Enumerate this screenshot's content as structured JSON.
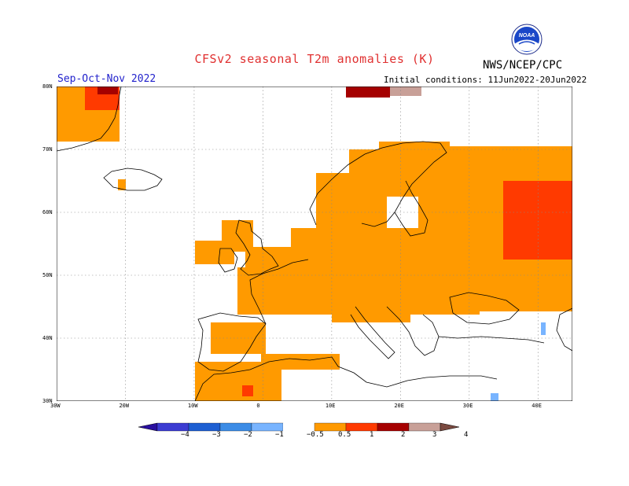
{
  "title": "CFSv2 seasonal T2m anomalies (K)",
  "agency": "NWS/NCEP/CPC",
  "logo_text": "NOAA",
  "season": "Sep-Oct-Nov 2022",
  "initial_conditions": "Initial conditions: 11Jun2022-20Jun2022",
  "map": {
    "lon_range": [
      -30,
      45
    ],
    "lat_range": [
      30,
      80
    ],
    "lat_labels": [
      {
        "lat": 80,
        "text": "80N"
      },
      {
        "lat": 70,
        "text": "70N"
      },
      {
        "lat": 60,
        "text": "60N"
      },
      {
        "lat": 50,
        "text": "50N"
      },
      {
        "lat": 40,
        "text": "40N"
      },
      {
        "lat": 30,
        "text": "30N"
      }
    ],
    "lon_labels": [
      {
        "lon": -30,
        "text": "30W"
      },
      {
        "lon": -20,
        "text": "20W"
      },
      {
        "lon": -10,
        "text": "10W"
      },
      {
        "lon": 0,
        "text": "0"
      },
      {
        "lon": 10,
        "text": "10E"
      },
      {
        "lon": 20,
        "text": "20E"
      },
      {
        "lon": 30,
        "text": "30E"
      },
      {
        "lon": 40,
        "text": "40E"
      }
    ]
  },
  "colors": {
    "bin_0p5_1": "#ff9a00",
    "bin_1_2": "#ff3a00",
    "bin_2_3": "#a50000",
    "bin_3_4": "#c8a098",
    "neg_0p5_1": "#78b4ff"
  },
  "colorbar": {
    "labels": [
      "−4",
      "−3",
      "−2",
      "−1",
      "−0.5",
      "0.5",
      "1",
      "2",
      "3",
      "4"
    ],
    "bins": [
      "#2a10a0",
      "#3c3cd2",
      "#1e5fd2",
      "#3c8ce6",
      "#78b4ff",
      "#ffffff",
      "#ff9a00",
      "#ff3a00",
      "#a50000",
      "#c8a098",
      "#7a4a40"
    ]
  }
}
